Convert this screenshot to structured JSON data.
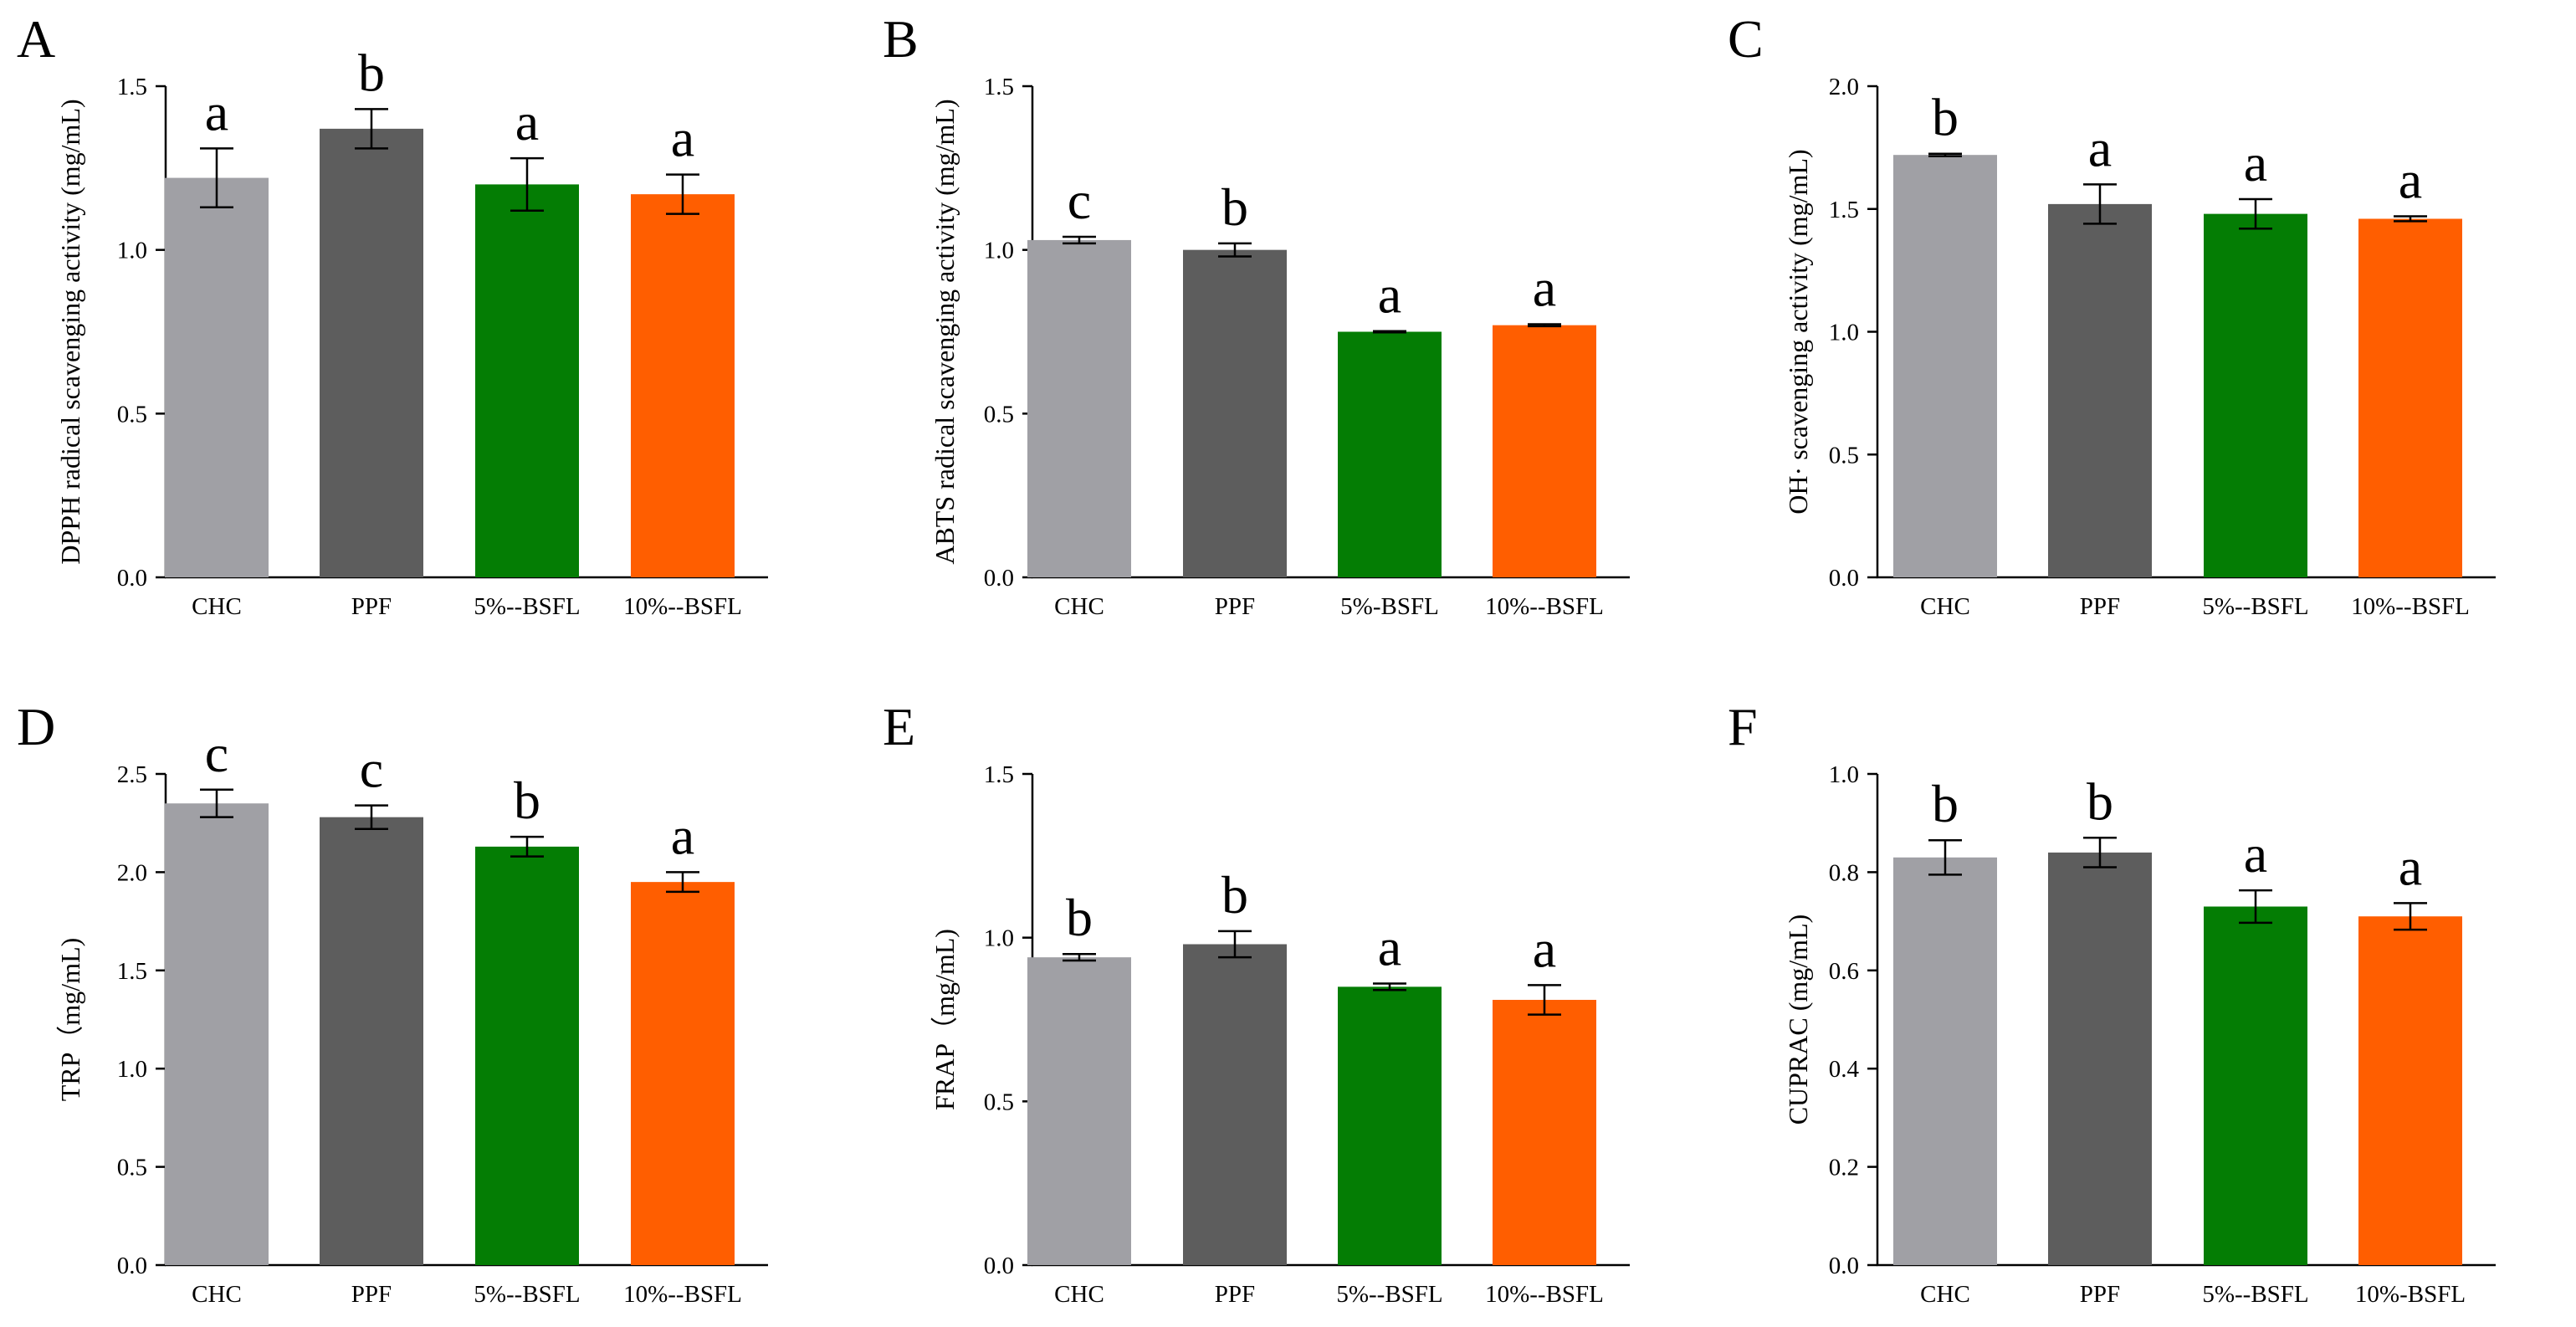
{
  "colors": {
    "CHC": "#a0a0a5",
    "PPF": "#5d5d5d",
    "5%": "#047d04",
    "10%": "#ff5e00",
    "axis": "#000000"
  },
  "chart_data": [
    {
      "panel": "A",
      "type": "bar",
      "ylabel": "DPPH radical  scavenging activity (mg/mL)",
      "ylim": [
        0,
        1.5
      ],
      "yticks": [
        "0.0",
        "0.5",
        "1.0",
        "1.5"
      ],
      "categories": [
        "CHC",
        "PPF",
        "5%--BSFL",
        "10%--BSFL"
      ],
      "values": [
        1.22,
        1.37,
        1.2,
        1.17
      ],
      "errors": [
        0.09,
        0.06,
        0.08,
        0.06
      ],
      "letters": [
        "a",
        "b",
        "a",
        "a"
      ]
    },
    {
      "panel": "B",
      "type": "bar",
      "ylabel": "ABTS radical scavenging activity (mg/mL)",
      "ylim": [
        0,
        1.5
      ],
      "yticks": [
        "0.0",
        "0.5",
        "1.0",
        "1.5"
      ],
      "categories": [
        "CHC",
        "PPF",
        "5%-BSFL",
        "10%--BSFL"
      ],
      "values": [
        1.03,
        1.0,
        0.75,
        0.77
      ],
      "errors": [
        0.01,
        0.02,
        0.002,
        0.003
      ],
      "letters": [
        "c",
        "b",
        "a",
        "a"
      ]
    },
    {
      "panel": "C",
      "type": "bar",
      "ylabel": "OH· scavenging activity (mg/mL)",
      "ylim": [
        0,
        2.0
      ],
      "yticks": [
        "0.0",
        "0.5",
        "1.0",
        "1.5",
        "2.0"
      ],
      "categories": [
        "CHC",
        "PPF",
        "5%--BSFL",
        "10%--BSFL"
      ],
      "values": [
        1.72,
        1.52,
        1.48,
        1.46
      ],
      "errors": [
        0.005,
        0.08,
        0.06,
        0.01
      ],
      "letters": [
        "b",
        "a",
        "a",
        "a"
      ]
    },
    {
      "panel": "D",
      "type": "bar",
      "ylabel": "TRP（mg/mL)",
      "ylim": [
        0,
        2.5
      ],
      "yticks": [
        "0.0",
        "0.5",
        "1.0",
        "1.5",
        "2.0",
        "2.5"
      ],
      "categories": [
        "CHC",
        "PPF",
        "5%--BSFL",
        "10%--BSFL"
      ],
      "values": [
        2.35,
        2.28,
        2.13,
        1.95
      ],
      "errors": [
        0.07,
        0.06,
        0.05,
        0.05
      ],
      "letters": [
        "c",
        "c",
        "b",
        "a"
      ]
    },
    {
      "panel": "E",
      "type": "bar",
      "ylabel": "FRAP（mg/mL)",
      "ylim": [
        0,
        1.5
      ],
      "yticks": [
        "0.0",
        "0.5",
        "1.0",
        "1.5"
      ],
      "categories": [
        "CHC",
        "PPF",
        "5%--BSFL",
        "10%--BSFL"
      ],
      "values": [
        0.94,
        0.98,
        0.85,
        0.81
      ],
      "errors": [
        0.01,
        0.04,
        0.01,
        0.045
      ],
      "letters": [
        "b",
        "b",
        "a",
        "a"
      ]
    },
    {
      "panel": "F",
      "type": "bar",
      "ylabel": "CUPRAC (mg/mL)",
      "ylim": [
        0,
        1.0
      ],
      "yticks": [
        "0.0",
        "0.2",
        "0.4",
        "0.6",
        "0.8",
        "1.0"
      ],
      "categories": [
        "CHC",
        "PPF",
        "5%--BSFL",
        "10%-BSFL"
      ],
      "values": [
        0.83,
        0.84,
        0.73,
        0.71
      ],
      "errors": [
        0.035,
        0.03,
        0.033,
        0.027
      ],
      "letters": [
        "b",
        "b",
        "a",
        "a"
      ]
    }
  ]
}
